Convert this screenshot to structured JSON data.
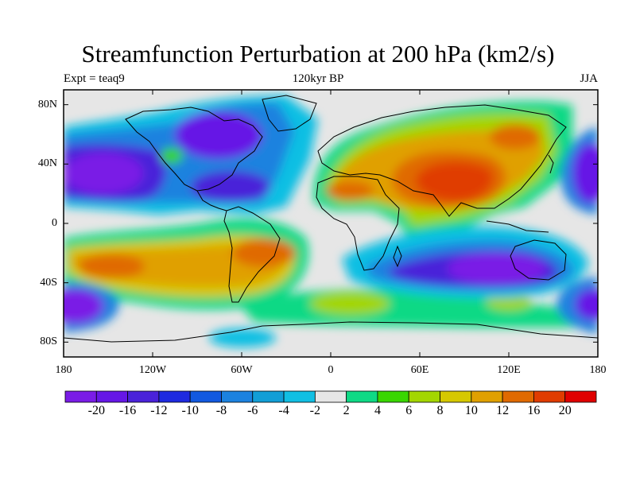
{
  "title": "Streamfunction Perturbation at 200 hPa (km2/s)",
  "left_string": "Expt = teaq9",
  "center_string": "120kyr BP",
  "right_string": "JJA",
  "map": {
    "projection": "cylindrical equidistant",
    "lon_range": [
      -180,
      180
    ],
    "lat_range": [
      -90,
      90
    ],
    "lon_ticks": [
      {
        "lon": -180,
        "label": "180"
      },
      {
        "lon": -120,
        "label": "120W"
      },
      {
        "lon": -60,
        "label": "60W"
      },
      {
        "lon": 0,
        "label": "0"
      },
      {
        "lon": 60,
        "label": "60E"
      },
      {
        "lon": 120,
        "label": "120E"
      },
      {
        "lon": 180,
        "label": "180"
      }
    ],
    "lat_ticks": [
      {
        "lat": 80,
        "label": "80N"
      },
      {
        "lat": 40,
        "label": "40N"
      },
      {
        "lat": 0,
        "label": "0"
      },
      {
        "lat": -40,
        "label": "40S"
      },
      {
        "lat": -80,
        "label": "80S"
      }
    ],
    "missing_color": "#e6e6e6",
    "features": [
      {
        "name": "north-atlantic-low",
        "lon": -150,
        "lat": 33,
        "value": -20
      },
      {
        "name": "north-america-low",
        "lon": -85,
        "lat": 40,
        "value": -18
      },
      {
        "name": "arctic-canada-low",
        "lon": -75,
        "lat": 75,
        "value": -16
      },
      {
        "name": "asia-high",
        "lon": 85,
        "lat": 30,
        "value": 18
      },
      {
        "name": "mongolia-high",
        "lon": 120,
        "lat": 58,
        "value": 15
      },
      {
        "name": "africa-high",
        "lon": 30,
        "lat": 25,
        "value": 10
      },
      {
        "name": "south-pacific-high",
        "lon": -130,
        "lat": -30,
        "value": 14
      },
      {
        "name": "south-america-high",
        "lon": -40,
        "lat": -20,
        "value": 16
      },
      {
        "name": "indian-ocean-low",
        "lon": 100,
        "lat": -35,
        "value": -20
      },
      {
        "name": "southern-pacific-low",
        "lon": -170,
        "lat": -55,
        "value": -18
      },
      {
        "name": "southern-atlantic-high",
        "lon": 0,
        "lat": -55,
        "value": 8
      },
      {
        "name": "west-pacific-low",
        "lon": 180,
        "lat": 40,
        "value": -18
      },
      {
        "name": "east-indian-low",
        "lon": 180,
        "lat": -55,
        "value": -16
      }
    ]
  },
  "colorbar": {
    "colors": [
      "#7a1ce6",
      "#6617e6",
      "#4a22d9",
      "#1e2ae0",
      "#1259e0",
      "#1c82df",
      "#129ed6",
      "#11bfe3",
      "#e6e6e6",
      "#0fd985",
      "#39d600",
      "#a3d600",
      "#d6c800",
      "#e0a000",
      "#e06a00",
      "#e03c00",
      "#e00000"
    ],
    "labels": [
      "-20",
      "-16",
      "-12",
      "-10",
      "-8",
      "-6",
      "-4",
      "-2",
      "2",
      "4",
      "6",
      "8",
      "10",
      "12",
      "16",
      "20"
    ]
  }
}
